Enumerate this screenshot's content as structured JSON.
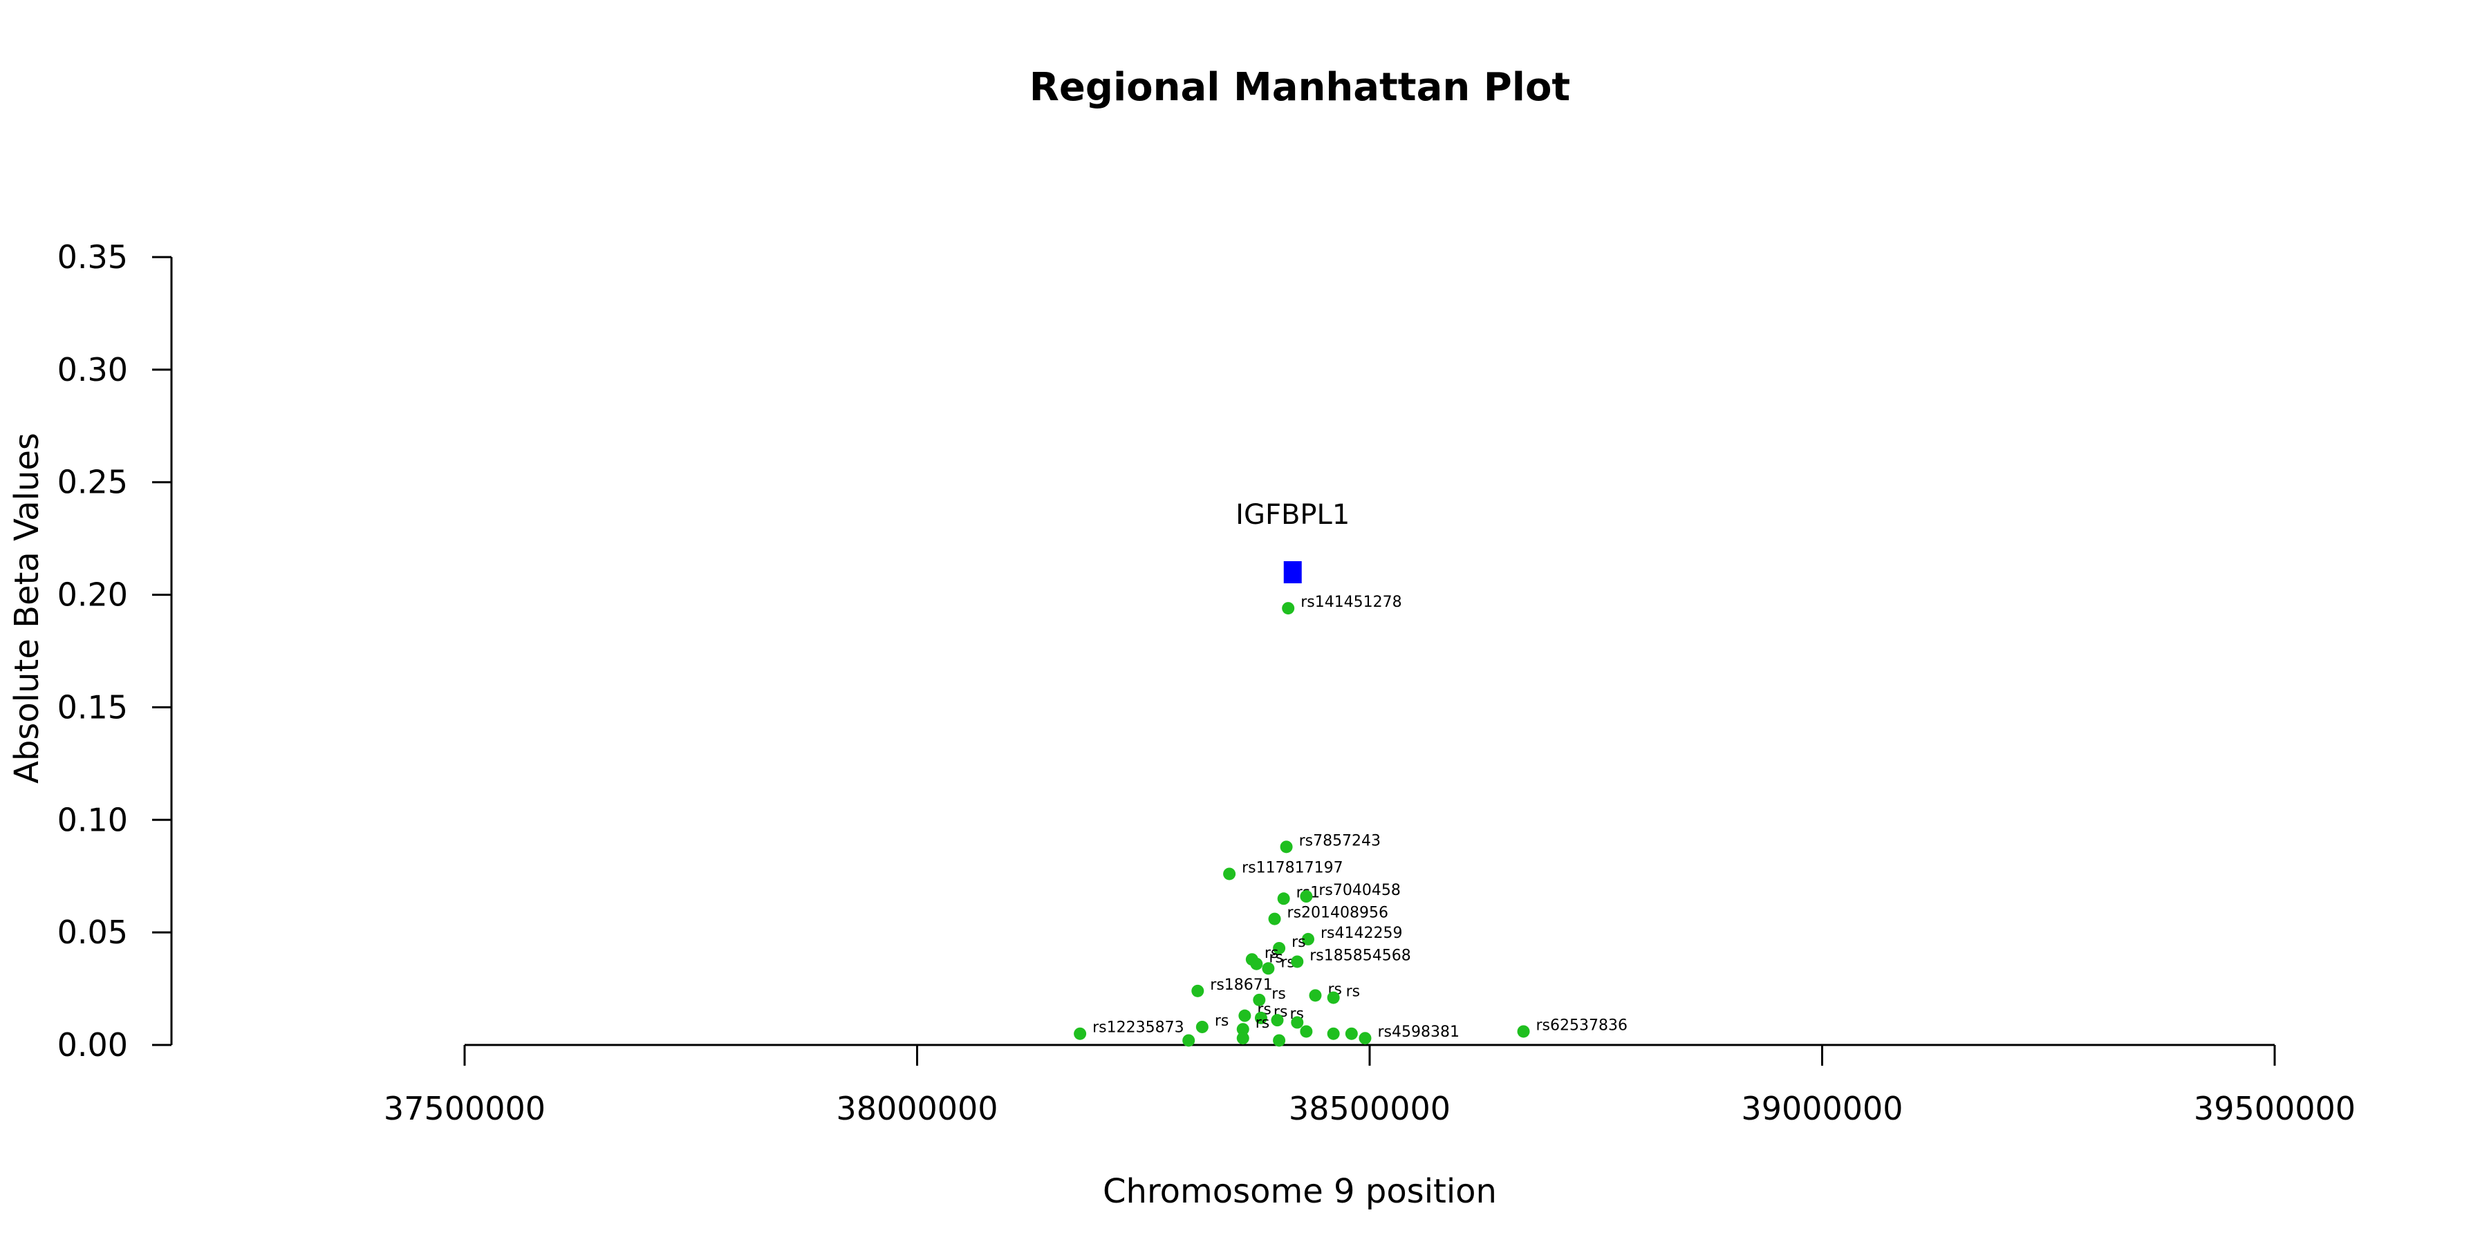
{
  "chart_data": {
    "type": "scatter",
    "title": "Regional Manhattan Plot",
    "xlabel": "Chromosome 9 position",
    "ylabel": "Absolute Beta Values",
    "xlim": [
      37500000,
      39500000
    ],
    "ylim": [
      0,
      0.35
    ],
    "xticks": [
      37500000,
      38000000,
      38500000,
      39000000,
      39500000
    ],
    "yticks": [
      0.0,
      0.05,
      0.1,
      0.15,
      0.2,
      0.25,
      0.3,
      0.35
    ],
    "xtick_labels": [
      "37500000",
      "38000000",
      "38500000",
      "39000000",
      "39500000"
    ],
    "ytick_labels": [
      "0.00",
      "0.05",
      "0.10",
      "0.15",
      "0.20",
      "0.25",
      "0.30",
      "0.35"
    ],
    "grid": false,
    "gene": {
      "name": "IGFBPL1",
      "x": 38415000,
      "y": 0.21,
      "color": "#0000ff"
    },
    "point_color": "#1fbf1f",
    "series": [
      {
        "points": [
          {
            "x": 38410000,
            "y": 0.194,
            "label": "rs141451278"
          },
          {
            "x": 38408000,
            "y": 0.088,
            "label": "rs7857243"
          },
          {
            "x": 38345000,
            "y": 0.076,
            "label": "rs117817197"
          },
          {
            "x": 38405000,
            "y": 0.065,
            "label": "rs1"
          },
          {
            "x": 38430000,
            "y": 0.066,
            "label": "rs7040458"
          },
          {
            "x": 38395000,
            "y": 0.056,
            "label": "rs201408956"
          },
          {
            "x": 38432000,
            "y": 0.047,
            "label": "rs4142259"
          },
          {
            "x": 38400000,
            "y": 0.043,
            "label": "rs"
          },
          {
            "x": 38370000,
            "y": 0.038,
            "label": "rs"
          },
          {
            "x": 38375000,
            "y": 0.036,
            "label": "rs"
          },
          {
            "x": 38388000,
            "y": 0.034,
            "label": "rs"
          },
          {
            "x": 38420000,
            "y": 0.037,
            "label": "rs185854568"
          },
          {
            "x": 38310000,
            "y": 0.024,
            "label": "rs18671"
          },
          {
            "x": 38378000,
            "y": 0.02,
            "label": "rs"
          },
          {
            "x": 38440000,
            "y": 0.022,
            "label": "rs"
          },
          {
            "x": 38460000,
            "y": 0.021,
            "label": "rs"
          },
          {
            "x": 38362000,
            "y": 0.013,
            "label": "rs"
          },
          {
            "x": 38380000,
            "y": 0.012,
            "label": "rs"
          },
          {
            "x": 38398000,
            "y": 0.011,
            "label": "rs"
          },
          {
            "x": 38420000,
            "y": 0.01,
            "label": ""
          },
          {
            "x": 38315000,
            "y": 0.008,
            "label": "rs"
          },
          {
            "x": 38360000,
            "y": 0.007,
            "label": "rs"
          },
          {
            "x": 38430000,
            "y": 0.006,
            "label": ""
          },
          {
            "x": 38460000,
            "y": 0.005,
            "label": ""
          },
          {
            "x": 38480000,
            "y": 0.005,
            "label": ""
          },
          {
            "x": 38180000,
            "y": 0.005,
            "label": "rs12235873"
          },
          {
            "x": 38670000,
            "y": 0.006,
            "label": "rs62537836"
          },
          {
            "x": 38300000,
            "y": 0.002,
            "label": ""
          },
          {
            "x": 38360000,
            "y": 0.003,
            "label": ""
          },
          {
            "x": 38400000,
            "y": 0.002,
            "label": ""
          },
          {
            "x": 38495000,
            "y": 0.003,
            "label": "rs4598381"
          }
        ]
      }
    ]
  }
}
